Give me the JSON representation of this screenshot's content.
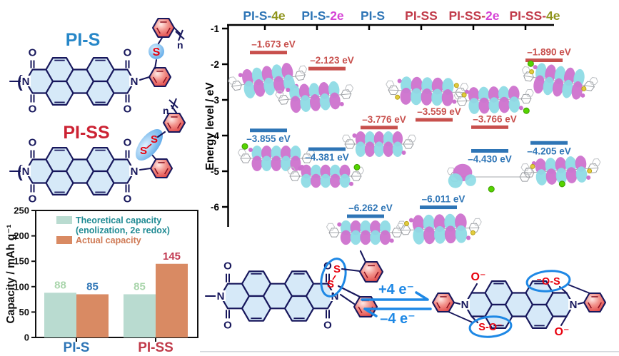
{
  "colors": {
    "bond": "#17175c",
    "ring_fill": "#d6e9f8",
    "phenyl_red": "#e04343",
    "s_red": "#e8000d",
    "highlight_blue": "#58a5e8",
    "arrow_blue": "#1e88e5",
    "mo_pink": "#cd72ce",
    "mo_cyan": "#8edbe5",
    "green_atom": "#55d400",
    "yellow_atom": "#e2cc3e",
    "pi_s_blue": "#2787c8",
    "pi_ss_red": "#cc2233",
    "separator_gray": "#d4d7dc"
  },
  "structures": {
    "pi_s": {
      "title": "PI-S",
      "title_color": "#2787c8",
      "repeat_sub": "n",
      "bracket": "(",
      "atoms": {
        "n": "N",
        "o": "O",
        "s": "S"
      }
    },
    "pi_ss": {
      "title": "PI-SS",
      "title_color": "#cc2233",
      "repeat_sub": "n",
      "bracket": "(",
      "atoms": {
        "n": "N",
        "o": "O",
        "s1": "S",
        "s2": "S"
      }
    }
  },
  "reaction": {
    "forward": "+4 e⁻",
    "backward": "–4 e⁻",
    "reactant_atoms": {
      "n": "N",
      "o": "O",
      "s1": "S",
      "s2": "S"
    },
    "product_labels": {
      "n": "N",
      "o_top": "O⁻",
      "o_bottom": "O⁻",
      "os_top": "⁻O-S",
      "so_bottom": "S-O⁻"
    }
  },
  "chart_data": [
    {
      "type": "bar",
      "categories": [
        "PI-S",
        "PI-SS"
      ],
      "category_colors": [
        "#2e75b6",
        "#c13b4a"
      ],
      "series": [
        {
          "name": "Theoretical capacity (enolization, 2e redox)",
          "name_lines": [
            "Theoretical capacity",
            "(enolization, 2e redox)"
          ],
          "color": "#b9dbd0",
          "text_color": "#1f8a93",
          "values": [
            88,
            85
          ],
          "value_label_colors": [
            "#a9d5ab",
            "#a9d5ab"
          ]
        },
        {
          "name": "Actual capacity",
          "name_lines": [
            "Actual capacity"
          ],
          "color": "#d98a63",
          "text_color": "#cf7a55",
          "values": [
            85,
            145
          ],
          "value_label_colors": [
            "#2e75b6",
            "#c23a52"
          ]
        }
      ],
      "xlabel": "",
      "ylabel": "Capacity / mAh g⁻¹",
      "ylim": [
        0,
        250
      ],
      "yticks": [
        0,
        50,
        100,
        150,
        200,
        250
      ],
      "legend_position": "inside-top-left",
      "grid": false
    },
    {
      "type": "energy-levels",
      "ylabel": "Energy level / eV",
      "ylim": [
        -6.6,
        -1
      ],
      "yticks": [
        -1,
        -2,
        -3,
        -4,
        -5,
        -6
      ],
      "lumo_color": "#c8504d",
      "homo_color": "#2e75b6",
      "series": [
        {
          "name": "PI-S-4e",
          "name_parts": [
            [
              "PI-S-",
              "#2e75b6"
            ],
            [
              "4e",
              "#8f941c"
            ]
          ],
          "lumo_ev": -1.673,
          "lumo_label": "–1.673 eV",
          "homo_ev": -3.855,
          "homo_label": "–3.855 eV"
        },
        {
          "name": "PI-S-2e",
          "name_parts": [
            [
              "PI-S-",
              "#2e75b6"
            ],
            [
              "2e",
              "#d543d5"
            ]
          ],
          "lumo_ev": -2.123,
          "lumo_label": "–2.123 eV",
          "homo_ev": -4.381,
          "homo_label": "–4.381 eV"
        },
        {
          "name": "PI-S",
          "name_parts": [
            [
              "PI-S",
              "#2e75b6"
            ]
          ],
          "lumo_ev": -3.776,
          "lumo_label": "–3.776 eV",
          "homo_ev": -6.262,
          "homo_label": "–6.262 eV"
        },
        {
          "name": "PI-SS",
          "name_parts": [
            [
              "PI-SS",
              "#c13b4a"
            ]
          ],
          "lumo_ev": -3.559,
          "lumo_label": "–3.559 eV",
          "homo_ev": -6.011,
          "homo_label": "–6.011 eV"
        },
        {
          "name": "PI-SS-2e",
          "name_parts": [
            [
              "PI-SS-",
              "#c13b4a"
            ],
            [
              "2e",
              "#d543d5"
            ]
          ],
          "lumo_ev": -3.766,
          "lumo_label": "–3.766 eV",
          "homo_ev": -4.43,
          "homo_label": "–4.430 eV"
        },
        {
          "name": "PI-SS-4e",
          "name_parts": [
            [
              "PI-SS-",
              "#c13b4a"
            ],
            [
              "4e",
              "#8f941c"
            ]
          ],
          "lumo_ev": -1.89,
          "lumo_label": "–1.890 eV",
          "homo_ev": -4.205,
          "homo_label": "–4.205 eV"
        }
      ]
    }
  ]
}
